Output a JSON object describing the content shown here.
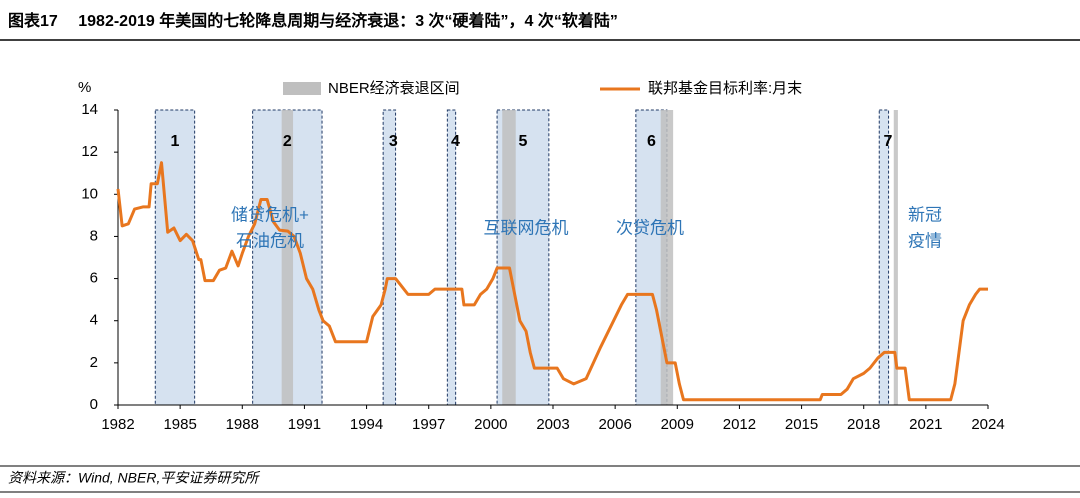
{
  "chart_data": {
    "type": "line",
    "title": "图表17　 1982-2019 年美国的七轮降息周期与经济衰退：3 次“硬着陆”，4 次“软着陆”",
    "source": "资料来源：Wind, NBER,平安证券研究所",
    "y_unit": "%",
    "xlim": [
      1982,
      2024
    ],
    "xticks": [
      1982,
      1985,
      1988,
      1991,
      1994,
      1997,
      2000,
      2003,
      2006,
      2009,
      2012,
      2015,
      2018,
      2021,
      2024
    ],
    "ylim": [
      0,
      14
    ],
    "yticks": [
      0,
      2,
      4,
      6,
      8,
      10,
      12,
      14
    ],
    "x": [
      1982.0,
      1982.2,
      1982.5,
      1982.8,
      1983.2,
      1983.5,
      1983.6,
      1983.9,
      1984.1,
      1984.4,
      1984.7,
      1985.0,
      1985.3,
      1985.6,
      1985.9,
      1986.0,
      1986.2,
      1986.6,
      1986.9,
      1987.2,
      1987.5,
      1987.8,
      1988.0,
      1988.3,
      1988.6,
      1988.9,
      1989.2,
      1989.5,
      1989.8,
      1990.2,
      1990.5,
      1990.8,
      1991.1,
      1991.4,
      1991.7,
      1991.9,
      1992.2,
      1992.5,
      1993.0,
      1994.0,
      1994.3,
      1994.7,
      1994.9,
      1995.0,
      1995.4,
      1995.6,
      1996.0,
      1997.0,
      1997.3,
      1998.6,
      1998.7,
      1999.2,
      1999.5,
      1999.8,
      2000.1,
      2000.3,
      2000.9,
      2001.1,
      2001.4,
      2001.7,
      2001.9,
      2002.1,
      2003.2,
      2003.5,
      2004.0,
      2004.6,
      2005.3,
      2006.3,
      2006.6,
      2007.8,
      2008.0,
      2008.3,
      2008.5,
      2008.9,
      2009.1,
      2009.3,
      2015.9,
      2016.0,
      2016.9,
      2017.2,
      2017.5,
      2018.0,
      2018.3,
      2018.7,
      2019.0,
      2019.5,
      2019.6,
      2020.0,
      2020.2,
      2022.2,
      2022.4,
      2022.6,
      2022.8,
      2023.1,
      2023.4,
      2023.6,
      2024.0
    ],
    "series": [
      {
        "name": "联邦基金目标利率:月末",
        "color": "#e8761e",
        "values": [
          10.25,
          8.5,
          8.6,
          9.3,
          9.4,
          9.4,
          10.5,
          10.5,
          11.5,
          8.2,
          8.4,
          7.8,
          8.1,
          7.8,
          6.9,
          6.9,
          5.9,
          5.9,
          6.4,
          6.5,
          7.3,
          6.6,
          7.2,
          8.0,
          8.6,
          9.75,
          9.75,
          8.7,
          8.3,
          8.25,
          8.0,
          7.2,
          6.0,
          5.5,
          4.5,
          4.0,
          3.75,
          3.0,
          3.0,
          3.0,
          4.2,
          4.75,
          5.5,
          6.0,
          6.0,
          5.75,
          5.25,
          5.25,
          5.5,
          5.5,
          4.75,
          4.75,
          5.25,
          5.5,
          6.0,
          6.5,
          6.5,
          5.5,
          4.0,
          3.5,
          2.5,
          1.75,
          1.75,
          1.25,
          1.0,
          1.25,
          2.75,
          4.75,
          5.25,
          5.25,
          4.5,
          3.0,
          2.0,
          2.0,
          1.0,
          0.25,
          0.25,
          0.5,
          0.5,
          0.75,
          1.25,
          1.5,
          1.75,
          2.25,
          2.5,
          2.5,
          1.75,
          1.75,
          0.25,
          0.25,
          1.0,
          2.5,
          4.0,
          4.75,
          5.25,
          5.5,
          5.5
        ]
      }
    ],
    "recessions": {
      "name": "NBER经济衰退区间",
      "color": "#bfbfbf",
      "spans": [
        [
          1989.9,
          1990.45
        ],
        [
          2000.55,
          2001.2
        ],
        [
          2008.2,
          2008.8
        ],
        [
          2019.45,
          2019.65
        ]
      ]
    },
    "cut_cycles": {
      "color": "#d6e2f0",
      "spans": [
        {
          "label": "1",
          "start": 1983.8,
          "end": 1985.7
        },
        {
          "label": "2",
          "start": 1988.5,
          "end": 1991.85
        },
        {
          "label": "3",
          "start": 1994.8,
          "end": 1995.4
        },
        {
          "label": "4",
          "start": 1997.9,
          "end": 1998.3
        },
        {
          "label": "5",
          "start": 2000.3,
          "end": 2002.8
        },
        {
          "label": "6",
          "start": 2007.0,
          "end": 2008.5
        },
        {
          "label": "7",
          "start": 2018.75,
          "end": 2019.2
        }
      ]
    },
    "annotations": [
      {
        "lines": [
          "储贷危机+",
          "石油危机"
        ]
      },
      {
        "lines": [
          "互联网危机"
        ]
      },
      {
        "lines": [
          "次贷危机"
        ]
      },
      {
        "lines": [
          "新冠",
          "疫情"
        ]
      }
    ]
  }
}
